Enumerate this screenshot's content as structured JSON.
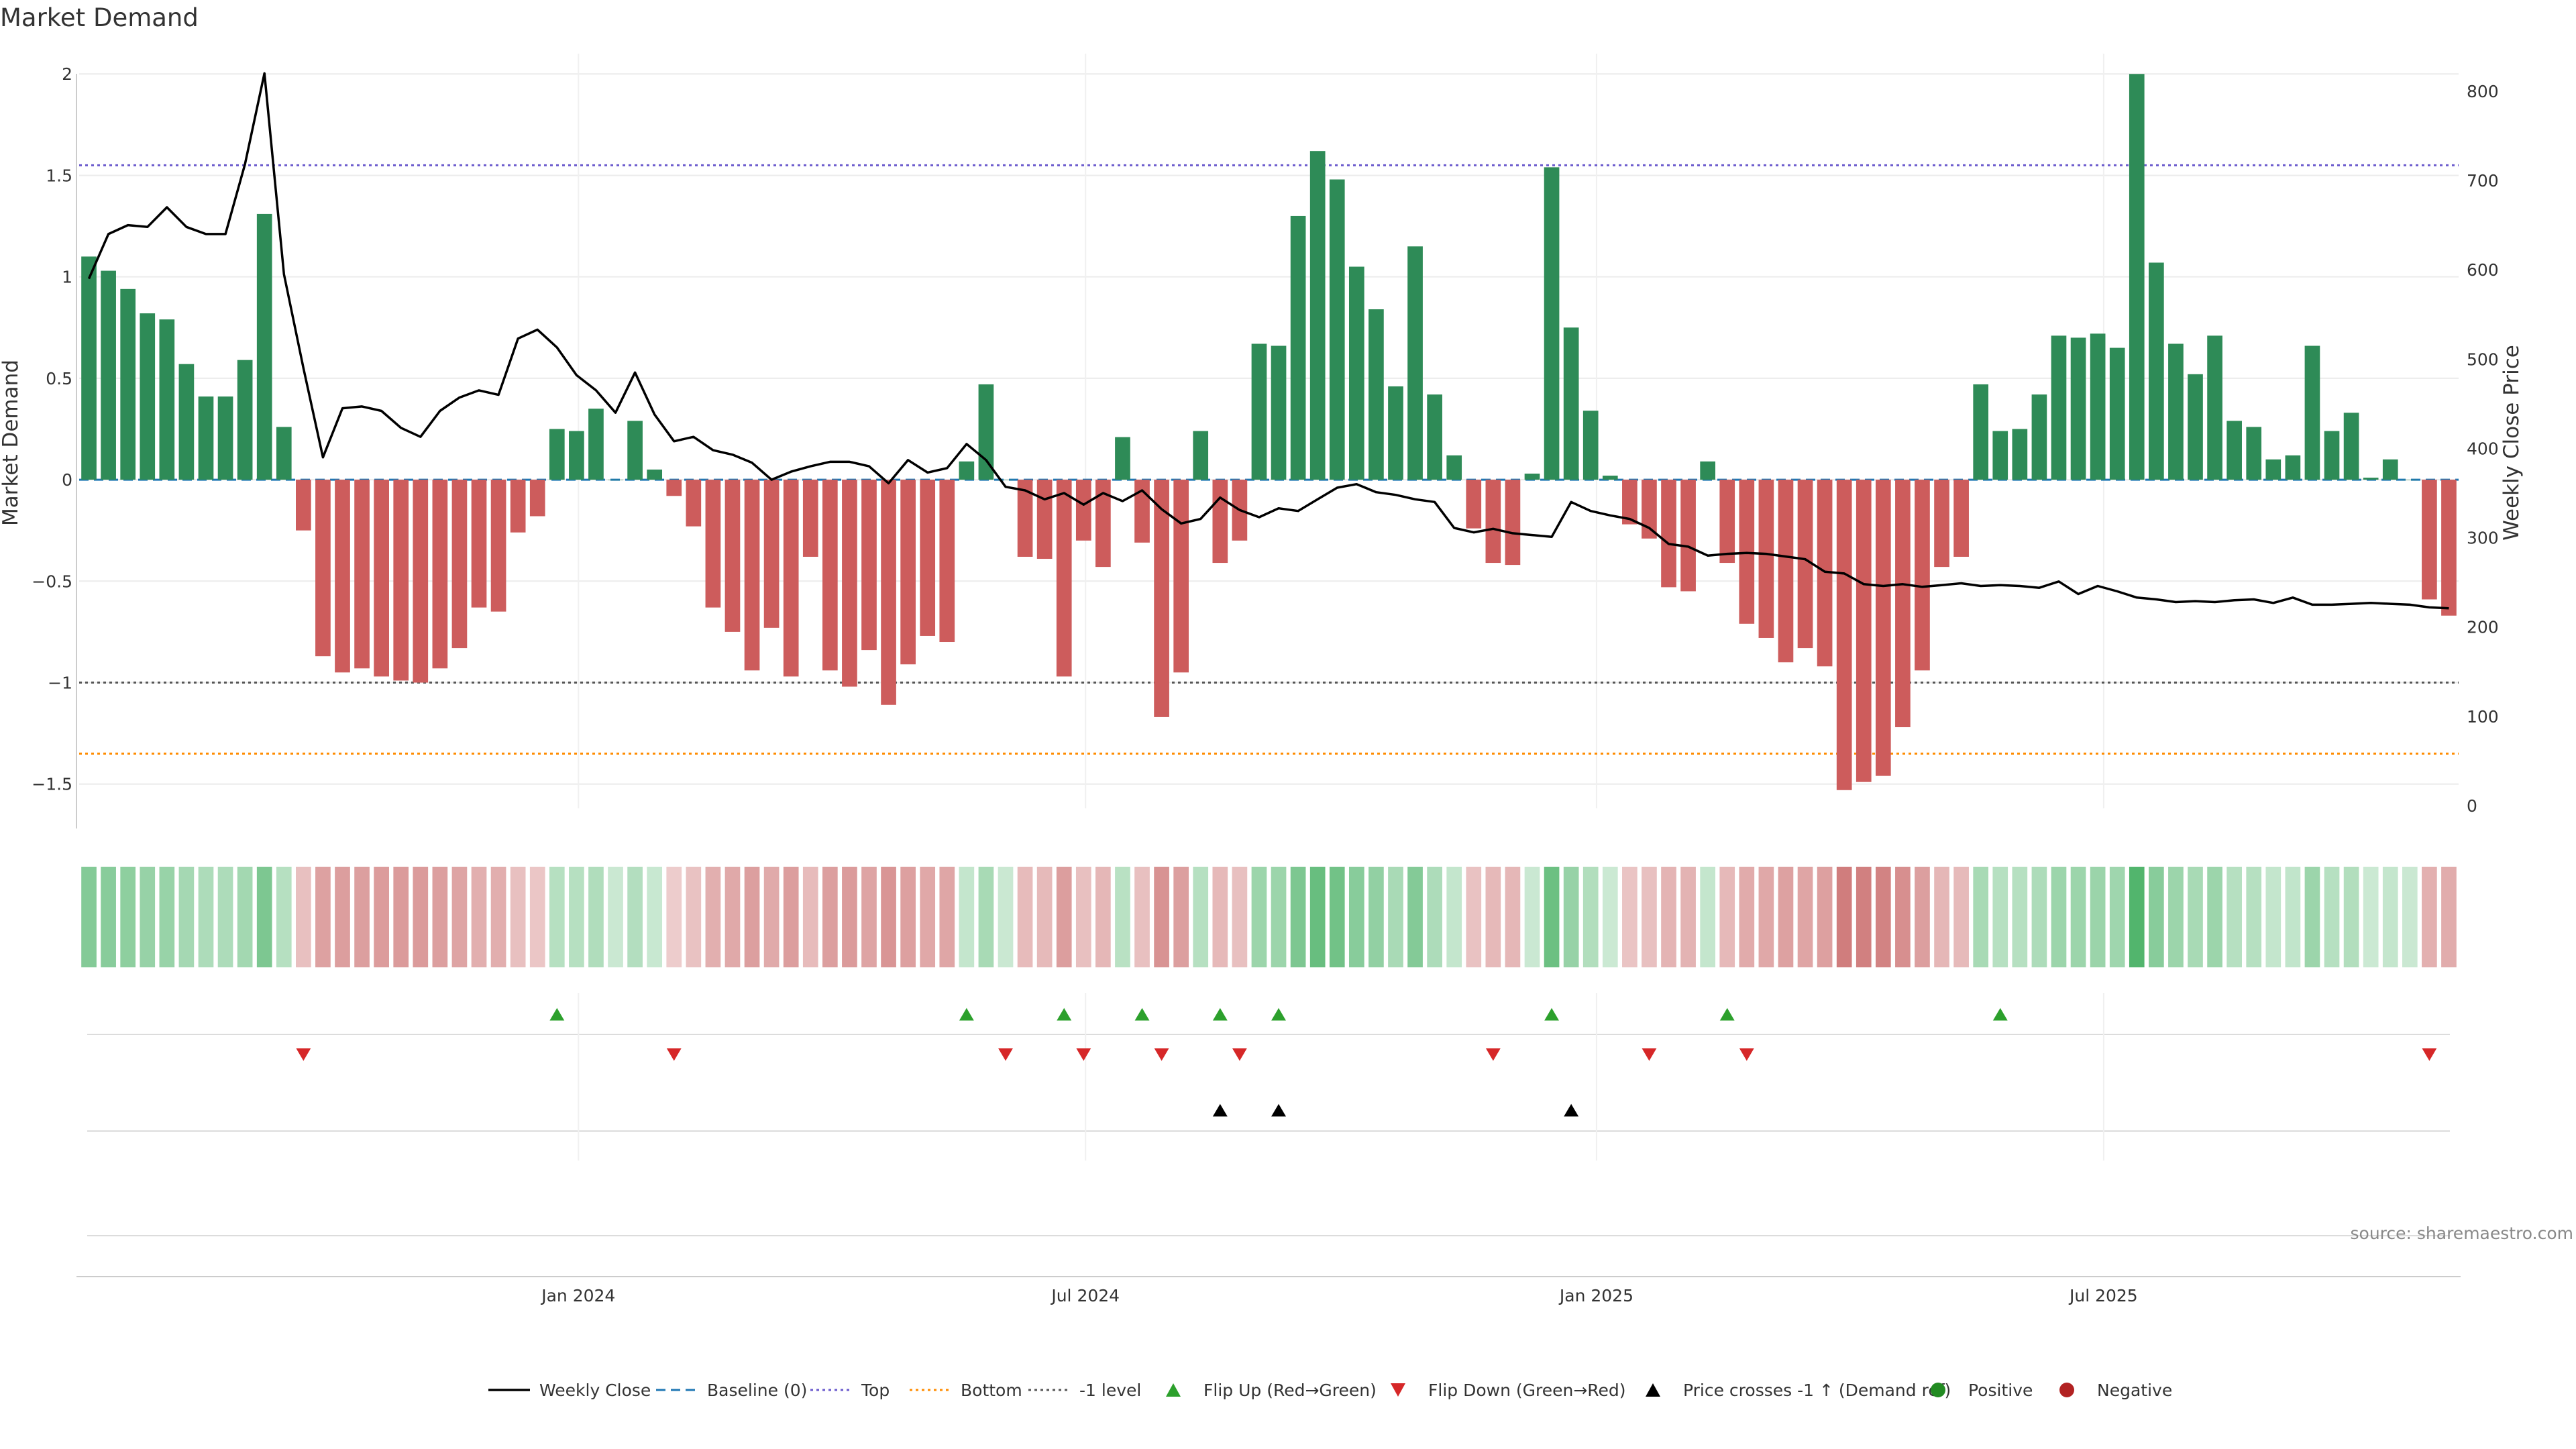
{
  "title": "Market Demand",
  "source": "source: sharemaestro.com",
  "colors": {
    "positive": "#2e8b57",
    "negative": "#cd5c5c",
    "line": "#000000",
    "baseline": "#1f77b4",
    "top": "#6a5acd",
    "bottom": "#ff8c00",
    "minus1": "#555555",
    "flip_up": "#2ca02c",
    "flip_down": "#d62728",
    "cross": "#000000"
  },
  "chart_data": {
    "type": "bar",
    "title": "Market Demand",
    "ylabel": "Market Demand",
    "y2label": "Weekly Close Price",
    "ylim": [
      -1.62,
      2.1
    ],
    "y2lim": [
      -3,
      842
    ],
    "yticks": [
      -1.5,
      -1,
      -0.5,
      0,
      0.5,
      1,
      1.5,
      2
    ],
    "ytick_labels": [
      "−1.5",
      "−1",
      "−0.5",
      "0",
      "0.5",
      "1",
      "1.5",
      "2"
    ],
    "y2ticks": [
      0,
      100,
      200,
      300,
      400,
      500,
      600,
      700,
      800
    ],
    "y2tick_labels": [
      "0",
      "100",
      "200",
      "300",
      "400",
      "500",
      "600",
      "700",
      "800"
    ],
    "xticks": [
      25.6,
      51.6,
      77.8,
      103.8
    ],
    "xtick_labels": [
      "Jan 2024",
      "Jul 2024",
      "Jan 2025",
      "Jul 2025"
    ],
    "reference_lines": {
      "baseline": 0,
      "top": 1.55,
      "bottom": -1.35,
      "minus1": -1
    },
    "demand": [
      1.1,
      1.03,
      0.94,
      0.82,
      0.79,
      0.57,
      0.41,
      0.41,
      0.59,
      1.31,
      0.26,
      -0.25,
      -0.87,
      -0.95,
      -0.93,
      -0.97,
      -0.99,
      -1.0,
      -0.93,
      -0.83,
      -0.63,
      -0.65,
      -0.26,
      -0.18,
      0.25,
      0.24,
      0.35,
      0.0,
      0.29,
      0.05,
      -0.08,
      -0.23,
      -0.63,
      -0.75,
      -0.94,
      -0.73,
      -0.97,
      -0.38,
      -0.94,
      -1.02,
      -0.84,
      -1.11,
      -0.91,
      -0.77,
      -0.8,
      0.09,
      0.47,
      0.0,
      -0.38,
      -0.39,
      -0.97,
      -0.3,
      -0.43,
      0.21,
      -0.31,
      -1.17,
      -0.95,
      0.24,
      -0.41,
      -0.3,
      0.67,
      0.66,
      1.3,
      1.62,
      1.48,
      1.05,
      0.84,
      0.46,
      1.15,
      0.42,
      0.12,
      -0.24,
      -0.41,
      -0.42,
      0.03,
      1.54,
      0.75,
      0.34,
      0.02,
      -0.22,
      -0.29,
      -0.53,
      -0.55,
      0.09,
      -0.41,
      -0.71,
      -0.78,
      -0.9,
      -0.83,
      -0.92,
      -1.53,
      -1.49,
      -1.46,
      -1.22,
      -0.94,
      -0.43,
      -0.38,
      0.47,
      0.24,
      0.25,
      0.42,
      0.71,
      0.7,
      0.72,
      0.65,
      2.0,
      1.07,
      0.67,
      0.52,
      0.71,
      0.29,
      0.26,
      0.1,
      0.12,
      0.66,
      0.24,
      0.33,
      0.01,
      0.1,
      0.0,
      -0.59,
      -0.67
    ],
    "price": [
      590,
      640,
      650,
      648,
      670,
      648,
      640,
      640,
      718,
      820,
      595,
      490,
      390,
      445,
      447,
      442,
      423,
      413,
      442,
      457,
      465,
      460,
      523,
      533,
      513,
      482,
      465,
      440,
      485,
      438,
      408,
      413,
      398,
      393,
      384,
      365,
      374,
      380,
      385,
      385,
      380,
      361,
      387,
      373,
      378,
      405,
      387,
      357,
      353,
      343,
      350,
      337,
      350,
      341,
      353,
      332,
      316,
      321,
      345,
      331,
      323,
      333,
      330,
      343,
      356,
      360,
      351,
      348,
      343,
      340,
      311,
      306,
      310,
      305,
      303,
      301,
      340,
      330,
      325,
      321,
      311,
      293,
      290,
      280,
      282,
      283,
      282,
      279,
      276,
      262,
      260,
      248,
      246,
      248,
      245,
      247,
      249,
      246,
      247,
      246,
      244,
      251,
      237,
      246,
      240,
      233,
      231,
      228,
      229,
      228,
      230,
      231,
      227,
      233,
      225,
      225,
      226,
      227,
      226,
      225,
      222,
      221
    ],
    "heatmap_intensity": [
      0.55,
      0.52,
      0.48,
      0.42,
      0.41,
      0.32,
      0.26,
      0.26,
      0.33,
      0.6,
      0.2,
      0.2,
      0.45,
      0.48,
      0.47,
      0.49,
      0.5,
      0.5,
      0.47,
      0.43,
      0.34,
      0.35,
      0.2,
      0.15,
      0.2,
      0.2,
      0.24,
      0.06,
      0.22,
      0.07,
      0.1,
      0.18,
      0.34,
      0.39,
      0.47,
      0.38,
      0.48,
      0.24,
      0.47,
      0.5,
      0.43,
      0.55,
      0.46,
      0.4,
      0.41,
      0.1,
      0.3,
      0.06,
      0.24,
      0.25,
      0.48,
      0.2,
      0.27,
      0.18,
      0.2,
      0.57,
      0.47,
      0.2,
      0.26,
      0.2,
      0.38,
      0.38,
      0.6,
      0.75,
      0.68,
      0.52,
      0.45,
      0.29,
      0.55,
      0.26,
      0.1,
      0.18,
      0.26,
      0.27,
      0.06,
      0.72,
      0.42,
      0.23,
      0.05,
      0.17,
      0.2,
      0.3,
      0.31,
      0.1,
      0.26,
      0.37,
      0.4,
      0.45,
      0.42,
      0.46,
      0.75,
      0.72,
      0.7,
      0.6,
      0.47,
      0.27,
      0.25,
      0.3,
      0.2,
      0.2,
      0.26,
      0.38,
      0.38,
      0.39,
      0.36,
      0.9,
      0.52,
      0.38,
      0.3,
      0.38,
      0.2,
      0.2,
      0.1,
      0.12,
      0.38,
      0.2,
      0.23,
      0.05,
      0.1,
      0.06,
      0.33,
      0.36
    ],
    "flip_up_weeks": [
      24,
      45,
      50,
      54,
      58,
      61,
      75,
      84,
      98
    ],
    "flip_down_weeks": [
      11,
      30,
      47,
      51,
      55,
      59,
      72,
      80,
      85,
      120
    ],
    "price_cross_weeks": [
      58,
      61,
      76
    ],
    "legend": [
      {
        "label": "Weekly Close",
        "style": "line"
      },
      {
        "label": "Baseline (0)",
        "style": "dash"
      },
      {
        "label": "Top",
        "style": "dot-top"
      },
      {
        "label": "Bottom",
        "style": "dot-bottom"
      },
      {
        "label": "-1 level",
        "style": "dot-minus1"
      },
      {
        "label": "Flip Up (Red→Green)",
        "style": "tri-up"
      },
      {
        "label": "Flip Down (Green→Red)",
        "style": "tri-down"
      },
      {
        "label": "Price crosses -1 ↑ (Demand ref)",
        "style": "tri-cross"
      },
      {
        "label": "Positive",
        "style": "dot-pos"
      },
      {
        "label": "Negative",
        "style": "dot-neg"
      }
    ],
    "legend_position": "bottom-center"
  }
}
